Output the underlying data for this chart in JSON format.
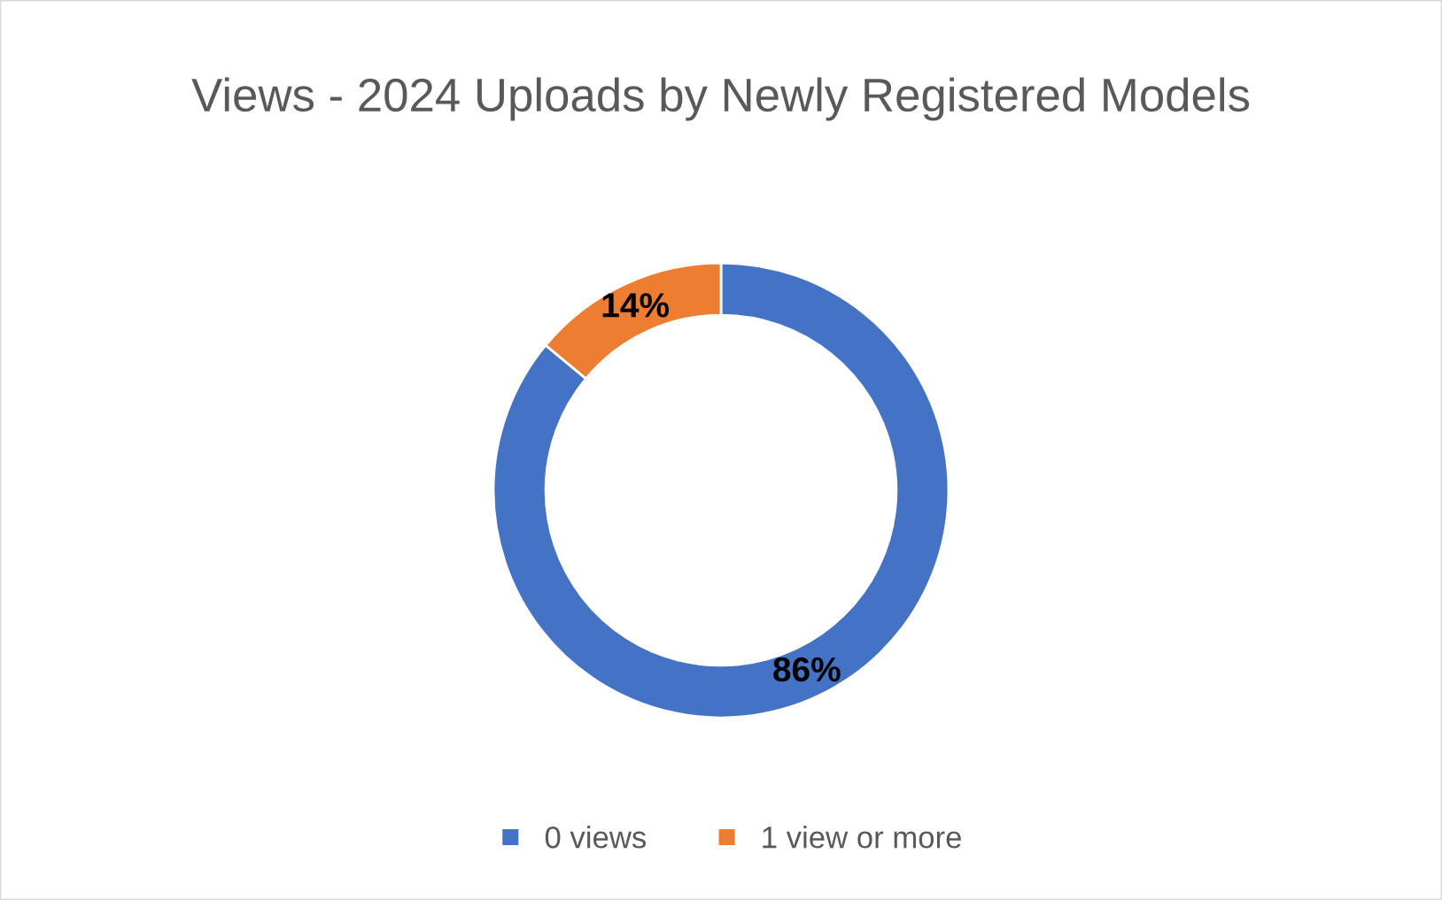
{
  "chart_data": {
    "type": "donut",
    "title": "Views - 2024 Uploads by Newly Registered Models",
    "categories": [
      "0 views",
      "1 view or more"
    ],
    "values": [
      86,
      14
    ],
    "colors": [
      "#4472c4",
      "#ed7d31"
    ],
    "value_labels": [
      "86%",
      "14%"
    ],
    "legend": "bottom"
  }
}
